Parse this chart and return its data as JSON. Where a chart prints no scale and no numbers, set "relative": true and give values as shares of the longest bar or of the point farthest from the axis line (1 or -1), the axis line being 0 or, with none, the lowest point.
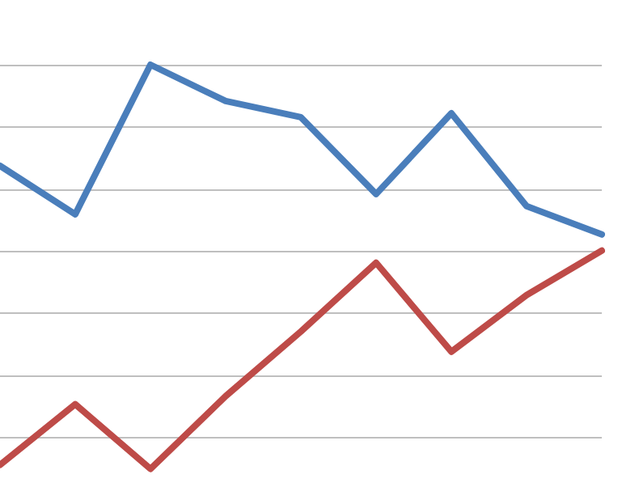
{
  "chart_data": {
    "type": "line",
    "relative": true,
    "grid": "y",
    "marker": "none",
    "line_style": "solid",
    "categories": [
      null,
      null,
      null,
      null,
      null,
      null,
      null,
      null,
      null
    ],
    "series": [
      {
        "color": "#4a7ebb",
        "values": [
          0.75,
          0.63,
          1.0,
          0.91,
          0.87,
          0.68,
          0.88,
          0.65,
          0.58
        ]
      },
      {
        "color": "#be4b48",
        "values": [
          0.01,
          0.16,
          0,
          0.18,
          0.34,
          0.51,
          0.29,
          0.43,
          0.54
        ]
      }
    ]
  }
}
